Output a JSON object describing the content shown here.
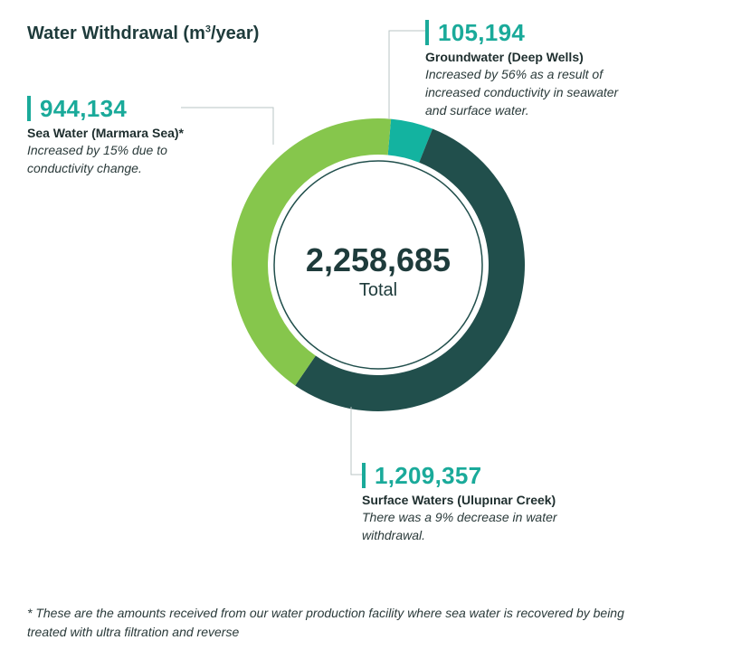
{
  "title_main": "Water Withdrawal (m",
  "title_sup": "3",
  "title_tail": "/year)",
  "total": {
    "value": "2,258,685",
    "label": "Total"
  },
  "segments": [
    {
      "value": "105,194",
      "label": "Groundwater (Deep Wells)",
      "note": "Increased by 56% as a result of increased conductivity in seawater and surface water."
    },
    {
      "value": "1,209,357",
      "label": "Surface Waters (Ulupınar Creek)",
      "note": "There was a 9% decrease in water withdrawal."
    },
    {
      "value": "944,134",
      "label": "Sea Water (Marmara Sea)*",
      "note": "Increased by 15% due to conductivity change."
    }
  ],
  "footnote": "* These are the amounts received from our water production facility where sea water is recovered by being treated with ultra filtration and reverse",
  "colors": {
    "groundwater": "#13b3a0",
    "surface": "#214f4c",
    "sea": "#86c64c",
    "accent": "#1aaa9a",
    "ring_line": "#214f4c"
  },
  "chart_data": {
    "type": "pie",
    "title": "Water Withdrawal (m³/year)",
    "categories": [
      "Groundwater (Deep Wells)",
      "Surface Waters (Ulupınar Creek)",
      "Sea Water (Marmara Sea)*"
    ],
    "values": [
      105194,
      1209357,
      944134
    ],
    "total": 2258685
  }
}
